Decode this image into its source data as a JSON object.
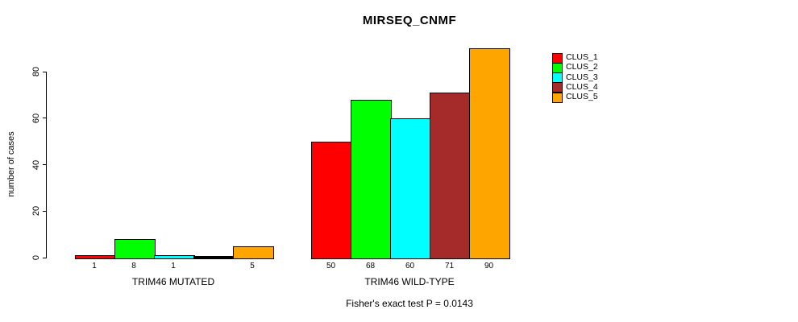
{
  "title": "MIRSEQ_CNMF",
  "chart_data": {
    "type": "bar",
    "title": "MIRSEQ_CNMF",
    "xlabel": "",
    "ylabel": "number of cases",
    "ylim": [
      0,
      92
    ],
    "yticks": [
      0,
      20,
      40,
      60,
      80
    ],
    "grid": false,
    "legend_position": "top-right-outside",
    "categories": [
      "TRIM46 MUTATED",
      "TRIM46 WILD-TYPE"
    ],
    "series": [
      {
        "name": "CLUS_1",
        "color": "#FF0000",
        "values": [
          1,
          50
        ]
      },
      {
        "name": "CLUS_2",
        "color": "#00FF00",
        "values": [
          8,
          68
        ]
      },
      {
        "name": "CLUS_3",
        "color": "#00FFFF",
        "values": [
          1,
          60
        ]
      },
      {
        "name": "CLUS_4",
        "color": "#A52A2A",
        "values": [
          0,
          71
        ]
      },
      {
        "name": "CLUS_5",
        "color": "#FFA500",
        "values": [
          5,
          90
        ]
      }
    ],
    "bar_value_labels": [
      [
        "1",
        "8",
        "1",
        "",
        "5"
      ],
      [
        "50",
        "68",
        "60",
        "71",
        "90"
      ]
    ],
    "annotation": "Fisher's exact test P = 0.0143"
  },
  "colors": {
    "background": "#FFFFFF",
    "text": "#000000",
    "axis": "#000000",
    "bar_border": "#000000"
  }
}
